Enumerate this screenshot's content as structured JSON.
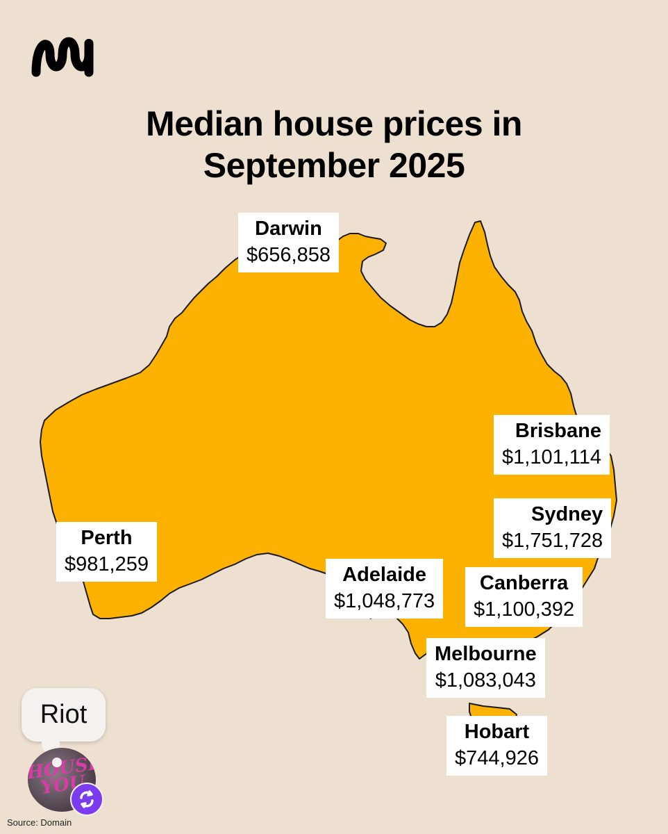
{
  "title": {
    "line1": "Median house prices in",
    "line2": "September 2025"
  },
  "cities": [
    {
      "name": "Darwin",
      "price": "$656,858"
    },
    {
      "name": "Brisbane",
      "price": "$1,101,114"
    },
    {
      "name": "Sydney",
      "price": "$1,751,728"
    },
    {
      "name": "Perth",
      "price": "$981,259"
    },
    {
      "name": "Adelaide",
      "price": "$1,048,773"
    },
    {
      "name": "Canberra",
      "price": "$1,100,392"
    },
    {
      "name": "Melbourne",
      "price": "$1,083,043"
    },
    {
      "name": "Hobart",
      "price": "$744,926"
    }
  ],
  "source": "Source: Domain",
  "overlay": {
    "bubble_text": "Riot",
    "avatar_text": "HOUSE YOU"
  },
  "colors": {
    "background": "#ede0d1",
    "land": "#fdb100",
    "coast": "#1a1a1a",
    "badge": "#7b3cf0"
  },
  "icons": [
    "abc-logo-icon",
    "repost-icon"
  ]
}
